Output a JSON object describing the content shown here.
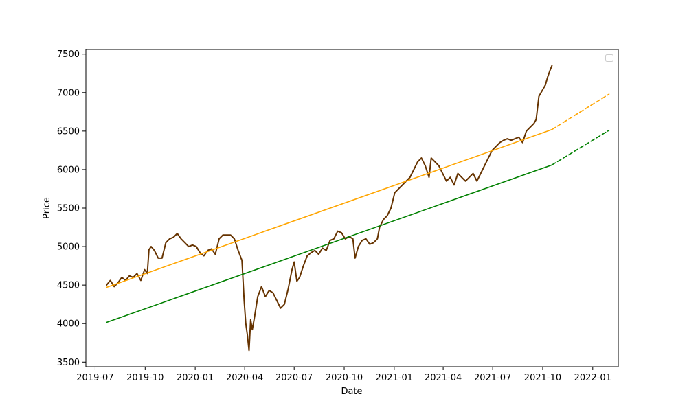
{
  "chart_data": {
    "type": "line",
    "xlabel": "Date",
    "ylabel": "Price",
    "xlim": [
      "2019-06-14",
      "2022-02-17"
    ],
    "ylim": [
      3440,
      7560
    ],
    "x_ticks": [
      "2019-07",
      "2019-10",
      "2020-01",
      "2020-04",
      "2020-07",
      "2020-10",
      "2021-01",
      "2021-04",
      "2021-07",
      "2021-10",
      "2022-01"
    ],
    "y_ticks": [
      3500,
      4000,
      4500,
      5000,
      5500,
      6000,
      6500,
      7000,
      7500
    ],
    "legend": {
      "placement": "top-right",
      "entries": []
    },
    "grid": false,
    "series": [
      {
        "color": "#663300",
        "style": "solid",
        "points": [
          [
            "2019-07-22",
            4500
          ],
          [
            "2019-07-29",
            4560
          ],
          [
            "2019-08-05",
            4480
          ],
          [
            "2019-08-12",
            4530
          ],
          [
            "2019-08-19",
            4600
          ],
          [
            "2019-08-26",
            4560
          ],
          [
            "2019-09-02",
            4620
          ],
          [
            "2019-09-09",
            4600
          ],
          [
            "2019-09-16",
            4650
          ],
          [
            "2019-09-23",
            4560
          ],
          [
            "2019-09-30",
            4700
          ],
          [
            "2019-10-05",
            4650
          ],
          [
            "2019-10-08",
            4960
          ],
          [
            "2019-10-12",
            5000
          ],
          [
            "2019-10-18",
            4950
          ],
          [
            "2019-10-25",
            4850
          ],
          [
            "2019-11-01",
            4850
          ],
          [
            "2019-11-08",
            5050
          ],
          [
            "2019-11-15",
            5100
          ],
          [
            "2019-11-22",
            5120
          ],
          [
            "2019-11-29",
            5170
          ],
          [
            "2019-12-06",
            5100
          ],
          [
            "2019-12-13",
            5050
          ],
          [
            "2019-12-20",
            5000
          ],
          [
            "2019-12-27",
            5020
          ],
          [
            "2020-01-03",
            5000
          ],
          [
            "2020-01-10",
            4920
          ],
          [
            "2020-01-17",
            4880
          ],
          [
            "2020-01-24",
            4950
          ],
          [
            "2020-01-31",
            4970
          ],
          [
            "2020-02-07",
            4900
          ],
          [
            "2020-02-14",
            5100
          ],
          [
            "2020-02-21",
            5150
          ],
          [
            "2020-02-28",
            5150
          ],
          [
            "2020-03-06",
            5150
          ],
          [
            "2020-03-13",
            5100
          ],
          [
            "2020-03-20",
            4950
          ],
          [
            "2020-03-27",
            4820
          ],
          [
            "2020-03-31",
            4300
          ],
          [
            "2020-04-03",
            4000
          ],
          [
            "2020-04-06",
            3850
          ],
          [
            "2020-04-09",
            3650
          ],
          [
            "2020-04-12",
            4050
          ],
          [
            "2020-04-15",
            3920
          ],
          [
            "2020-04-19",
            4080
          ],
          [
            "2020-04-25",
            4350
          ],
          [
            "2020-05-02",
            4480
          ],
          [
            "2020-05-09",
            4350
          ],
          [
            "2020-05-16",
            4430
          ],
          [
            "2020-05-23",
            4400
          ],
          [
            "2020-05-30",
            4300
          ],
          [
            "2020-06-06",
            4200
          ],
          [
            "2020-06-13",
            4250
          ],
          [
            "2020-06-20",
            4450
          ],
          [
            "2020-06-27",
            4700
          ],
          [
            "2020-07-01",
            4800
          ],
          [
            "2020-07-06",
            4550
          ],
          [
            "2020-07-11",
            4600
          ],
          [
            "2020-07-18",
            4750
          ],
          [
            "2020-07-25",
            4880
          ],
          [
            "2020-08-01",
            4920
          ],
          [
            "2020-08-08",
            4950
          ],
          [
            "2020-08-15",
            4900
          ],
          [
            "2020-08-22",
            4980
          ],
          [
            "2020-08-29",
            4950
          ],
          [
            "2020-09-05",
            5080
          ],
          [
            "2020-09-12",
            5100
          ],
          [
            "2020-09-19",
            5200
          ],
          [
            "2020-09-26",
            5180
          ],
          [
            "2020-10-03",
            5100
          ],
          [
            "2020-10-10",
            5130
          ],
          [
            "2020-10-17",
            5100
          ],
          [
            "2020-10-21",
            4850
          ],
          [
            "2020-10-27",
            5000
          ],
          [
            "2020-11-03",
            5080
          ],
          [
            "2020-11-10",
            5100
          ],
          [
            "2020-11-17",
            5030
          ],
          [
            "2020-11-24",
            5050
          ],
          [
            "2020-12-01",
            5100
          ],
          [
            "2020-12-05",
            5250
          ],
          [
            "2020-12-12",
            5350
          ],
          [
            "2020-12-19",
            5400
          ],
          [
            "2020-12-26",
            5500
          ],
          [
            "2021-01-02",
            5700
          ],
          [
            "2021-01-09",
            5750
          ],
          [
            "2021-01-16",
            5800
          ],
          [
            "2021-01-23",
            5850
          ],
          [
            "2021-01-30",
            5900
          ],
          [
            "2021-02-06",
            6000
          ],
          [
            "2021-02-13",
            6100
          ],
          [
            "2021-02-20",
            6150
          ],
          [
            "2021-02-27",
            6050
          ],
          [
            "2021-03-06",
            5900
          ],
          [
            "2021-03-10",
            6150
          ],
          [
            "2021-03-17",
            6100
          ],
          [
            "2021-03-24",
            6050
          ],
          [
            "2021-03-31",
            5950
          ],
          [
            "2021-04-07",
            5850
          ],
          [
            "2021-04-14",
            5900
          ],
          [
            "2021-04-21",
            5800
          ],
          [
            "2021-04-28",
            5950
          ],
          [
            "2021-05-05",
            5900
          ],
          [
            "2021-05-12",
            5850
          ],
          [
            "2021-05-19",
            5900
          ],
          [
            "2021-05-26",
            5950
          ],
          [
            "2021-06-02",
            5850
          ],
          [
            "2021-06-09",
            5950
          ],
          [
            "2021-06-16",
            6050
          ],
          [
            "2021-06-23",
            6150
          ],
          [
            "2021-06-30",
            6250
          ],
          [
            "2021-07-07",
            6300
          ],
          [
            "2021-07-14",
            6350
          ],
          [
            "2021-07-21",
            6380
          ],
          [
            "2021-07-28",
            6400
          ],
          [
            "2021-08-04",
            6380
          ],
          [
            "2021-08-11",
            6400
          ],
          [
            "2021-08-18",
            6420
          ],
          [
            "2021-08-25",
            6350
          ],
          [
            "2021-09-01",
            6500
          ],
          [
            "2021-09-08",
            6550
          ],
          [
            "2021-09-15",
            6600
          ],
          [
            "2021-09-19",
            6650
          ],
          [
            "2021-09-24",
            6950
          ],
          [
            "2021-09-28",
            7000
          ],
          [
            "2021-10-02",
            7050
          ],
          [
            "2021-10-06",
            7100
          ],
          [
            "2021-10-10",
            7200
          ],
          [
            "2021-10-14",
            7280
          ],
          [
            "2021-10-18",
            7350
          ]
        ]
      },
      {
        "color": "#ffa500",
        "style": "solid",
        "points": [
          [
            "2019-07-22",
            4470
          ],
          [
            "2021-10-18",
            6520
          ]
        ]
      },
      {
        "color": "#ffa500",
        "style": "dashed",
        "points": [
          [
            "2021-10-18",
            6520
          ],
          [
            "2022-01-31",
            6980
          ]
        ]
      },
      {
        "color": "#008000",
        "style": "solid",
        "points": [
          [
            "2019-07-22",
            4015
          ],
          [
            "2021-10-18",
            6060
          ]
        ]
      },
      {
        "color": "#008000",
        "style": "dashed",
        "points": [
          [
            "2021-10-18",
            6060
          ],
          [
            "2022-01-31",
            6510
          ]
        ]
      }
    ]
  }
}
